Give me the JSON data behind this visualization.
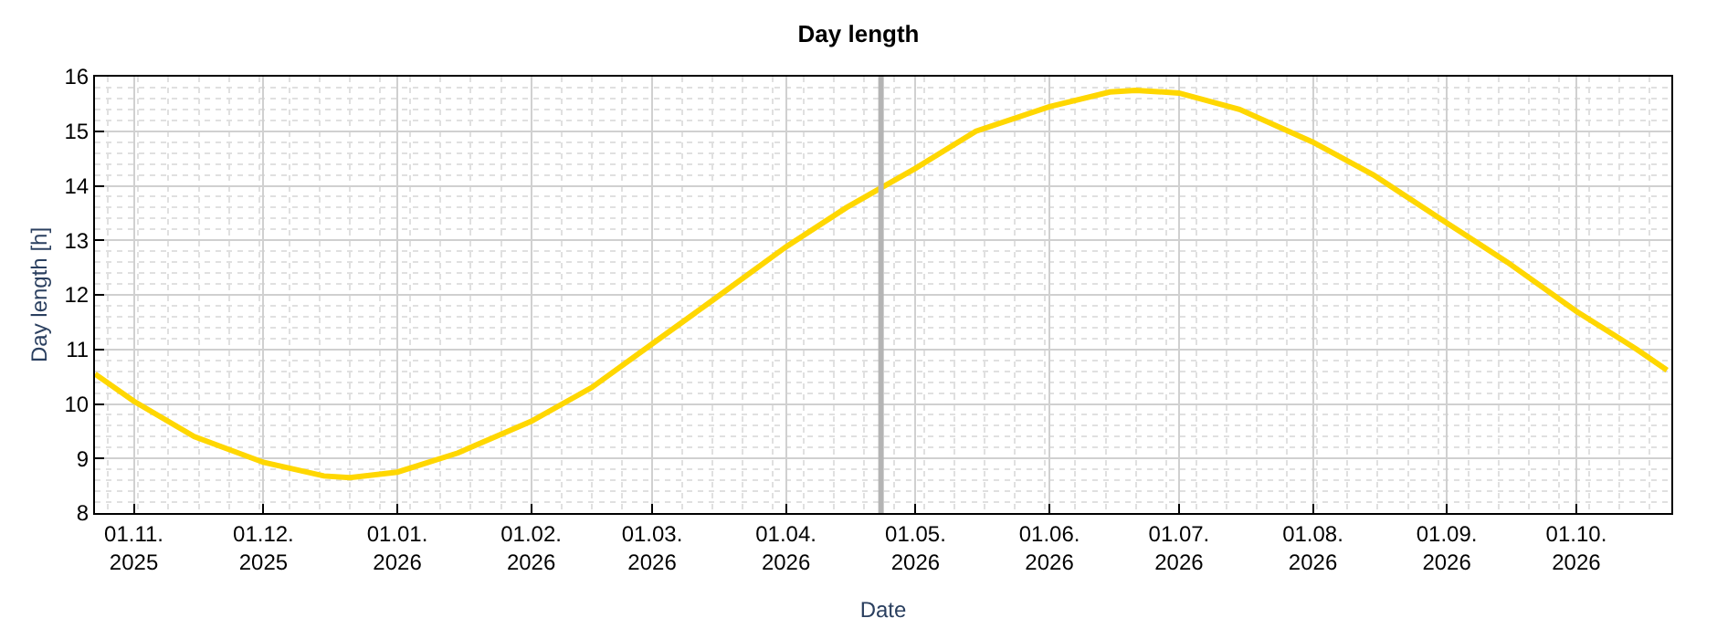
{
  "chart_data": {
    "type": "line",
    "title": "Day length",
    "xlabel": "Date",
    "ylabel": "Day length [h]",
    "x": [
      "2025-10-23",
      "2025-11-01",
      "2025-11-15",
      "2025-12-01",
      "2025-12-15",
      "2025-12-21",
      "2026-01-01",
      "2026-01-15",
      "2026-02-01",
      "2026-02-15",
      "2026-03-01",
      "2026-03-15",
      "2026-04-01",
      "2026-04-15",
      "2026-05-01",
      "2026-05-15",
      "2026-06-01",
      "2026-06-15",
      "2026-06-21",
      "2026-07-01",
      "2026-07-15",
      "2026-08-01",
      "2026-08-15",
      "2026-09-01",
      "2026-09-15",
      "2026-10-01",
      "2026-10-15",
      "2026-10-22"
    ],
    "series": [
      {
        "color": "#ffd700",
        "values": [
          10.55,
          10.05,
          9.4,
          8.93,
          8.68,
          8.65,
          8.75,
          9.1,
          9.68,
          10.3,
          11.1,
          11.9,
          12.88,
          13.6,
          14.32,
          15.0,
          15.45,
          15.72,
          15.75,
          15.7,
          15.4,
          14.8,
          14.2,
          13.32,
          12.6,
          11.7,
          11.0,
          10.62
        ]
      }
    ],
    "xlim": [
      "2025-10-23",
      "2026-10-23"
    ],
    "xticks": [
      {
        "value": "2025-11-01",
        "label": "01.11.\n2025"
      },
      {
        "value": "2025-12-01",
        "label": "01.12.\n2025"
      },
      {
        "value": "2026-01-01",
        "label": "01.01.\n2026"
      },
      {
        "value": "2026-02-01",
        "label": "01.02.\n2026"
      },
      {
        "value": "2026-03-01",
        "label": "01.03.\n2026"
      },
      {
        "value": "2026-04-01",
        "label": "01.04.\n2026"
      },
      {
        "value": "2026-05-01",
        "label": "01.05.\n2026"
      },
      {
        "value": "2026-06-01",
        "label": "01.06.\n2026"
      },
      {
        "value": "2026-07-01",
        "label": "01.07.\n2026"
      },
      {
        "value": "2026-08-01",
        "label": "01.08.\n2026"
      },
      {
        "value": "2026-09-01",
        "label": "01.09.\n2026"
      },
      {
        "value": "2026-10-01",
        "label": "01.10.\n2026"
      }
    ],
    "ylim": [
      8,
      16
    ],
    "yticks": [
      8,
      9,
      10,
      11,
      12,
      13,
      14,
      15,
      16
    ],
    "ref_lines": [
      {
        "axis": "x",
        "value": "2026-04-23",
        "color": "#b4b4b4"
      }
    ],
    "grid": true,
    "marker": "none",
    "line_style": "solid"
  }
}
